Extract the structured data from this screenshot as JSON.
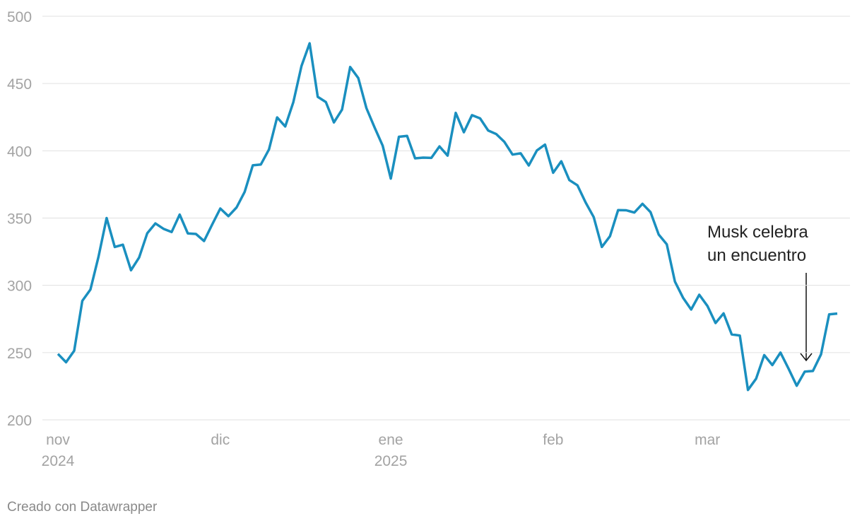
{
  "chart_data": {
    "type": "line",
    "categories": [
      "nov 2024",
      null,
      null,
      null,
      null,
      null,
      null,
      null,
      null,
      null,
      null,
      null,
      null,
      null,
      null,
      null,
      null,
      null,
      null,
      null,
      "dic",
      null,
      null,
      null,
      null,
      null,
      null,
      null,
      null,
      null,
      null,
      null,
      null,
      null,
      null,
      null,
      null,
      null,
      null,
      null,
      null,
      "ene 2025",
      null,
      null,
      null,
      null,
      null,
      null,
      null,
      null,
      null,
      null,
      null,
      null,
      null,
      null,
      null,
      null,
      null,
      null,
      null,
      "feb",
      null,
      null,
      null,
      null,
      null,
      null,
      null,
      null,
      null,
      null,
      null,
      null,
      null,
      null,
      null,
      null,
      null,
      null,
      "mar",
      null,
      null,
      null,
      null,
      null,
      null,
      null,
      null,
      null,
      null,
      null,
      null,
      null,
      null,
      null,
      null
    ],
    "series": [
      {
        "color": "#1a8fbf",
        "values": [
          249.0,
          242.8,
          251.4,
          288.5,
          296.9,
          321.2,
          350.0,
          328.5,
          330.2,
          311.2,
          320.7,
          338.7,
          346.0,
          342.0,
          339.6,
          352.6,
          338.6,
          338.2,
          332.9,
          345.2,
          357.1,
          351.4,
          357.9,
          369.5,
          389.2,
          389.8,
          401.0,
          424.8,
          418.1,
          436.2,
          463.0,
          479.9,
          440.1,
          436.2,
          421.1,
          430.6,
          462.3,
          454.1,
          431.7,
          417.4,
          403.8,
          379.3,
          410.4,
          411.1,
          394.4,
          394.9,
          394.7,
          403.3,
          396.4,
          428.2,
          413.8,
          426.5,
          424.1,
          415.1,
          412.4,
          406.6,
          397.2,
          398.1,
          389.1,
          400.3,
          404.6,
          383.7,
          392.2,
          378.2,
          374.3,
          361.6,
          350.7,
          328.5,
          336.5,
          355.9,
          355.8,
          354.1,
          360.6,
          354.4,
          337.8,
          330.5,
          302.8,
          290.8,
          282.0,
          293.0,
          284.7,
          272.0,
          279.1,
          263.5,
          262.7,
          222.2,
          230.6,
          248.1,
          240.7,
          250.0,
          238.0,
          225.3,
          235.9,
          236.3,
          248.7,
          278.4,
          279.0
        ]
      }
    ],
    "ylim": [
      200,
      500
    ],
    "yticks": [
      200,
      250,
      300,
      350,
      400,
      450,
      500
    ],
    "grid": true,
    "annotation": [
      "Musk celebra",
      "un encuentro"
    ],
    "footer": "Creado con Datawrapper"
  }
}
